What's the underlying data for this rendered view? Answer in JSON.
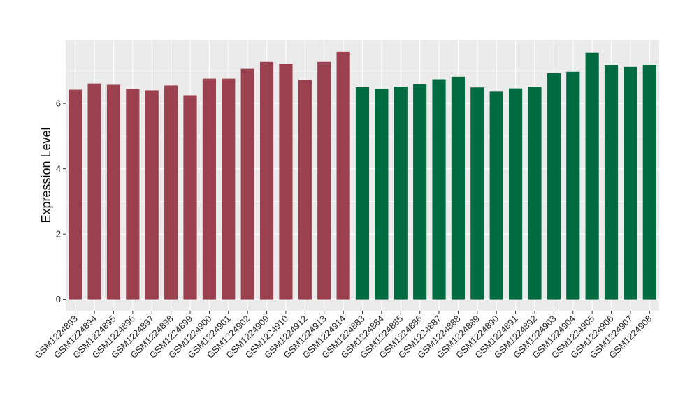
{
  "chart_data": {
    "type": "bar",
    "ylabel": "Expression Level",
    "xlabel": "",
    "ylim": [
      -0.35,
      7.95
    ],
    "yticks": [
      0,
      2,
      4,
      6
    ],
    "grid": true,
    "categories": [
      "GSM1224893",
      "GSM1224894",
      "GSM1224895",
      "GSM1224896",
      "GSM1224897",
      "GSM1224898",
      "GSM1224899",
      "GSM1224900",
      "GSM1224901",
      "GSM1224902",
      "GSM1224909",
      "GSM1224910",
      "GSM1224912",
      "GSM1224913",
      "GSM1224914",
      "GSM1224883",
      "GSM1224884",
      "GSM1224885",
      "GSM1224886",
      "GSM1224887",
      "GSM1224888",
      "GSM1224889",
      "GSM1224890",
      "GSM1224891",
      "GSM1224892",
      "GSM1224903",
      "GSM1224904",
      "GSM1224905",
      "GSM1224906",
      "GSM1224907",
      "GSM1224908"
    ],
    "values": [
      6.42,
      6.61,
      6.57,
      6.44,
      6.4,
      6.55,
      6.25,
      6.76,
      6.76,
      7.06,
      7.27,
      7.22,
      6.72,
      7.27,
      7.59,
      6.5,
      6.44,
      6.51,
      6.59,
      6.74,
      6.82,
      6.49,
      6.36,
      6.46,
      6.51,
      6.93,
      6.97,
      7.55,
      7.18,
      7.12,
      7.18
    ],
    "groups": [
      {
        "color": "#9b404f",
        "count": 15
      },
      {
        "color": "#006a40",
        "count": 16
      }
    ],
    "colors": {
      "panel_background": "#ebebeb",
      "grid": "#ffffff",
      "group1": "#9b404f",
      "group2": "#006a40"
    }
  }
}
